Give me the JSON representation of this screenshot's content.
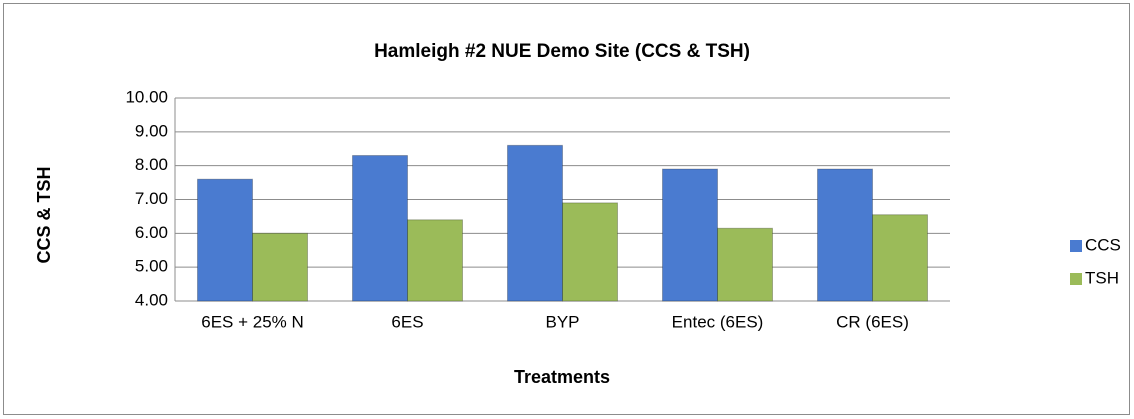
{
  "chart_data": {
    "type": "bar",
    "title": "Hamleigh #2 NUE Demo Site (CCS & TSH)",
    "x_label": "Treatments",
    "y_label": "CCS & TSH",
    "categories": [
      "6ES + 25% N",
      "6ES",
      "BYP",
      "Entec (6ES)",
      "CR (6ES)"
    ],
    "series": [
      {
        "name": "CCS",
        "color": "#4a7bd0",
        "values": [
          7.6,
          8.3,
          8.6,
          7.9,
          7.9
        ]
      },
      {
        "name": "TSH",
        "color": "#9bbb59",
        "values": [
          6.0,
          6.4,
          6.9,
          6.15,
          6.55
        ]
      }
    ],
    "ylim": [
      4,
      10
    ],
    "yticks": [
      {
        "value": 4,
        "label": "4.00"
      },
      {
        "value": 5,
        "label": "5.00"
      },
      {
        "value": 6,
        "label": "6.00"
      },
      {
        "value": 7,
        "label": "7.00"
      },
      {
        "value": 8,
        "label": "8.00"
      },
      {
        "value": 9,
        "label": "9.00"
      },
      {
        "value": 10,
        "label": "10.00"
      }
    ],
    "grid": true,
    "legend": "right"
  }
}
